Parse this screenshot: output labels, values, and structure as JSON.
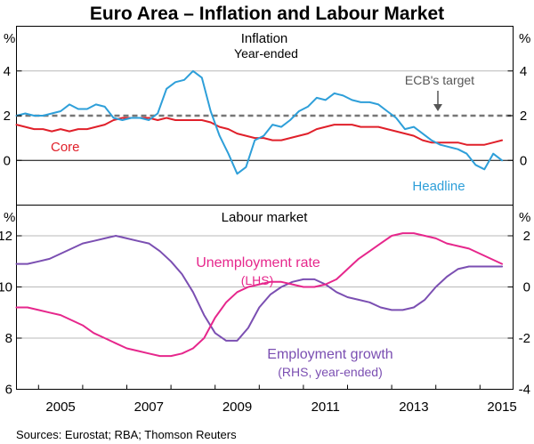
{
  "title": "Euro Area – Inflation and Labour Market",
  "source": "Sources:   Eurostat; RBA; Thomson Reuters",
  "colors": {
    "headline": "#2e9fd9",
    "core": "#e0202a",
    "target": "#777777",
    "unemployment": "#e6278c",
    "employment": "#7b4fb2"
  },
  "chart_data": [
    {
      "name": "inflation",
      "type": "line",
      "title": "Inflation",
      "subtitle": "Year-ended",
      "unit_left": "%",
      "unit_right": "%",
      "ylim": [
        -2,
        6
      ],
      "yticks": [
        0,
        2,
        4
      ],
      "target": {
        "label": "ECB's target",
        "value": 2
      },
      "series": [
        {
          "name": "Headline",
          "label": "Headline",
          "color": "#2e9fd9",
          "x": [
            2004.5,
            2004.7,
            2004.9,
            2005.1,
            2005.3,
            2005.5,
            2005.7,
            2005.9,
            2006.1,
            2006.3,
            2006.5,
            2006.7,
            2006.9,
            2007.1,
            2007.3,
            2007.5,
            2007.7,
            2007.9,
            2008.1,
            2008.3,
            2008.5,
            2008.7,
            2008.9,
            2009.1,
            2009.3,
            2009.5,
            2009.7,
            2009.9,
            2010.1,
            2010.3,
            2010.5,
            2010.7,
            2010.9,
            2011.1,
            2011.3,
            2011.5,
            2011.7,
            2011.9,
            2012.1,
            2012.3,
            2012.5,
            2012.7,
            2012.9,
            2013.1,
            2013.3,
            2013.5,
            2013.7,
            2013.9,
            2014.1,
            2014.3,
            2014.5,
            2014.7,
            2014.9,
            2015.1,
            2015.3,
            2015.5
          ],
          "values": [
            2.0,
            2.1,
            2.0,
            2.0,
            2.1,
            2.2,
            2.5,
            2.3,
            2.3,
            2.5,
            2.4,
            1.9,
            1.8,
            1.9,
            1.9,
            1.8,
            2.1,
            3.2,
            3.5,
            3.6,
            4.0,
            3.7,
            2.2,
            1.1,
            0.3,
            -0.6,
            -0.3,
            0.9,
            1.1,
            1.6,
            1.5,
            1.8,
            2.2,
            2.4,
            2.8,
            2.7,
            3.0,
            2.9,
            2.7,
            2.6,
            2.6,
            2.5,
            2.2,
            1.9,
            1.4,
            1.5,
            1.2,
            0.9,
            0.7,
            0.6,
            0.5,
            0.3,
            -0.2,
            -0.4,
            0.3,
            0.0
          ]
        },
        {
          "name": "Core",
          "label": "Core",
          "color": "#e0202a",
          "x": [
            2004.5,
            2004.7,
            2004.9,
            2005.1,
            2005.3,
            2005.5,
            2005.7,
            2005.9,
            2006.1,
            2006.3,
            2006.5,
            2006.7,
            2006.9,
            2007.1,
            2007.3,
            2007.5,
            2007.7,
            2007.9,
            2008.1,
            2008.3,
            2008.5,
            2008.7,
            2008.9,
            2009.1,
            2009.3,
            2009.5,
            2009.7,
            2009.9,
            2010.1,
            2010.3,
            2010.5,
            2010.7,
            2010.9,
            2011.1,
            2011.3,
            2011.5,
            2011.7,
            2011.9,
            2012.1,
            2012.3,
            2012.5,
            2012.7,
            2012.9,
            2013.1,
            2013.3,
            2013.5,
            2013.7,
            2013.9,
            2014.1,
            2014.3,
            2014.5,
            2014.7,
            2014.9,
            2015.1,
            2015.3,
            2015.5
          ],
          "values": [
            1.6,
            1.5,
            1.4,
            1.4,
            1.3,
            1.4,
            1.3,
            1.4,
            1.4,
            1.5,
            1.6,
            1.8,
            1.9,
            1.9,
            1.9,
            1.9,
            1.8,
            1.9,
            1.8,
            1.8,
            1.8,
            1.8,
            1.7,
            1.5,
            1.4,
            1.2,
            1.1,
            1.0,
            1.0,
            0.9,
            0.9,
            1.0,
            1.1,
            1.2,
            1.4,
            1.5,
            1.6,
            1.6,
            1.6,
            1.5,
            1.5,
            1.5,
            1.4,
            1.3,
            1.2,
            1.1,
            0.9,
            0.8,
            0.8,
            0.8,
            0.8,
            0.7,
            0.7,
            0.7,
            0.8,
            0.9
          ]
        }
      ]
    },
    {
      "name": "labour",
      "type": "line",
      "title": "Labour market",
      "unit_left": "%",
      "unit_right": "%",
      "ylim_left": [
        6,
        13.2
      ],
      "yticks_left": [
        6,
        8,
        10,
        12
      ],
      "ylim_right": [
        -4,
        3.2
      ],
      "yticks_right": [
        -4,
        -2,
        0,
        2
      ],
      "xlim": [
        2004.5,
        2015.75
      ],
      "xticks": [
        2005,
        2007,
        2009,
        2011,
        2013,
        2015
      ],
      "series": [
        {
          "name": "Unemployment rate",
          "label": "Unemployment rate",
          "sublabel": "(LHS)",
          "axis": "left",
          "color": "#e6278c",
          "x": [
            2004.5,
            2004.75,
            2005.0,
            2005.25,
            2005.5,
            2005.75,
            2006.0,
            2006.25,
            2006.5,
            2006.75,
            2007.0,
            2007.25,
            2007.5,
            2007.75,
            2008.0,
            2008.25,
            2008.5,
            2008.75,
            2009.0,
            2009.25,
            2009.5,
            2009.75,
            2010.0,
            2010.25,
            2010.5,
            2010.75,
            2011.0,
            2011.25,
            2011.5,
            2011.75,
            2012.0,
            2012.25,
            2012.5,
            2012.75,
            2013.0,
            2013.25,
            2013.5,
            2013.75,
            2014.0,
            2014.25,
            2014.5,
            2014.75,
            2015.0,
            2015.25,
            2015.5
          ],
          "values": [
            9.2,
            9.2,
            9.1,
            9.0,
            8.9,
            8.7,
            8.5,
            8.2,
            8.0,
            7.8,
            7.6,
            7.5,
            7.4,
            7.3,
            7.3,
            7.4,
            7.6,
            8.0,
            8.8,
            9.4,
            9.8,
            10.0,
            10.1,
            10.2,
            10.2,
            10.1,
            10.0,
            10.0,
            10.1,
            10.3,
            10.7,
            11.1,
            11.4,
            11.7,
            12.0,
            12.1,
            12.1,
            12.0,
            11.9,
            11.7,
            11.6,
            11.5,
            11.3,
            11.1,
            10.9
          ]
        },
        {
          "name": "Employment growth",
          "label": "Employment growth",
          "sublabel": "(RHS, year-ended)",
          "axis": "right",
          "color": "#7b4fb2",
          "x": [
            2004.5,
            2004.75,
            2005.0,
            2005.25,
            2005.5,
            2005.75,
            2006.0,
            2006.25,
            2006.5,
            2006.75,
            2007.0,
            2007.25,
            2007.5,
            2007.75,
            2008.0,
            2008.25,
            2008.5,
            2008.75,
            2009.0,
            2009.25,
            2009.5,
            2009.75,
            2010.0,
            2010.25,
            2010.5,
            2010.75,
            2011.0,
            2011.25,
            2011.5,
            2011.75,
            2012.0,
            2012.25,
            2012.5,
            2012.75,
            2013.0,
            2013.25,
            2013.5,
            2013.75,
            2014.0,
            2014.25,
            2014.5,
            2014.75,
            2015.0,
            2015.25,
            2015.5
          ],
          "values": [
            0.9,
            0.9,
            1.0,
            1.1,
            1.3,
            1.5,
            1.7,
            1.8,
            1.9,
            2.0,
            1.9,
            1.8,
            1.7,
            1.4,
            1.0,
            0.5,
            -0.2,
            -1.1,
            -1.8,
            -2.1,
            -2.1,
            -1.6,
            -0.8,
            -0.3,
            0.0,
            0.2,
            0.3,
            0.3,
            0.1,
            -0.2,
            -0.4,
            -0.5,
            -0.6,
            -0.8,
            -0.9,
            -0.9,
            -0.8,
            -0.5,
            0.0,
            0.4,
            0.7,
            0.8,
            0.8,
            0.8,
            0.8
          ]
        }
      ]
    }
  ]
}
